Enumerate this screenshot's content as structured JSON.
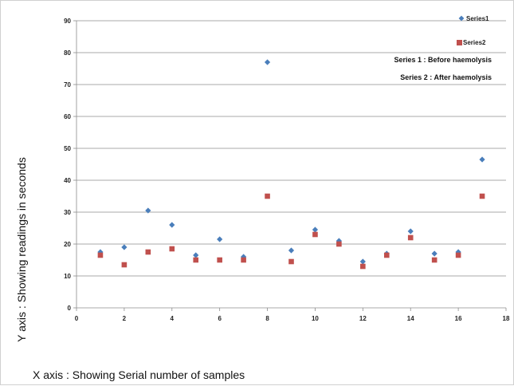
{
  "chart_data": {
    "type": "scatter",
    "title": "",
    "xlabel": "X axis : Showing Serial number of samples",
    "ylabel": "Y axis : Showing readings in seconds",
    "xlim": [
      0,
      18
    ],
    "ylim": [
      0,
      90
    ],
    "x_ticks": [
      0,
      2,
      4,
      6,
      8,
      10,
      12,
      14,
      16,
      18
    ],
    "y_ticks": [
      0,
      10,
      20,
      30,
      40,
      50,
      60,
      70,
      80,
      90
    ],
    "grid": "horizontal",
    "legend_position": "top-right",
    "series": [
      {
        "name": "Series1",
        "marker": "diamond",
        "color": "#4a7ebb",
        "x": [
          1,
          2,
          3,
          4,
          5,
          6,
          7,
          8,
          9,
          10,
          11,
          12,
          13,
          14,
          15,
          16,
          17
        ],
        "values": [
          17.5,
          19,
          30.5,
          26,
          16.5,
          21.5,
          16,
          77,
          18,
          24.5,
          21,
          14.5,
          17,
          24,
          17,
          17.5,
          46.5
        ]
      },
      {
        "name": "Series2",
        "marker": "square",
        "color": "#c0504d",
        "x": [
          1,
          2,
          3,
          4,
          5,
          6,
          7,
          8,
          9,
          10,
          11,
          12,
          13,
          14,
          15,
          16,
          17
        ],
        "values": [
          16.5,
          13.5,
          17.5,
          18.5,
          15,
          15,
          15,
          35,
          14.5,
          23,
          20,
          13,
          16.5,
          22,
          15,
          16.5,
          35
        ]
      }
    ],
    "annotations": [
      "Series 1 : Before  haemolysis",
      "Series 2 : After  haemolysis"
    ]
  }
}
